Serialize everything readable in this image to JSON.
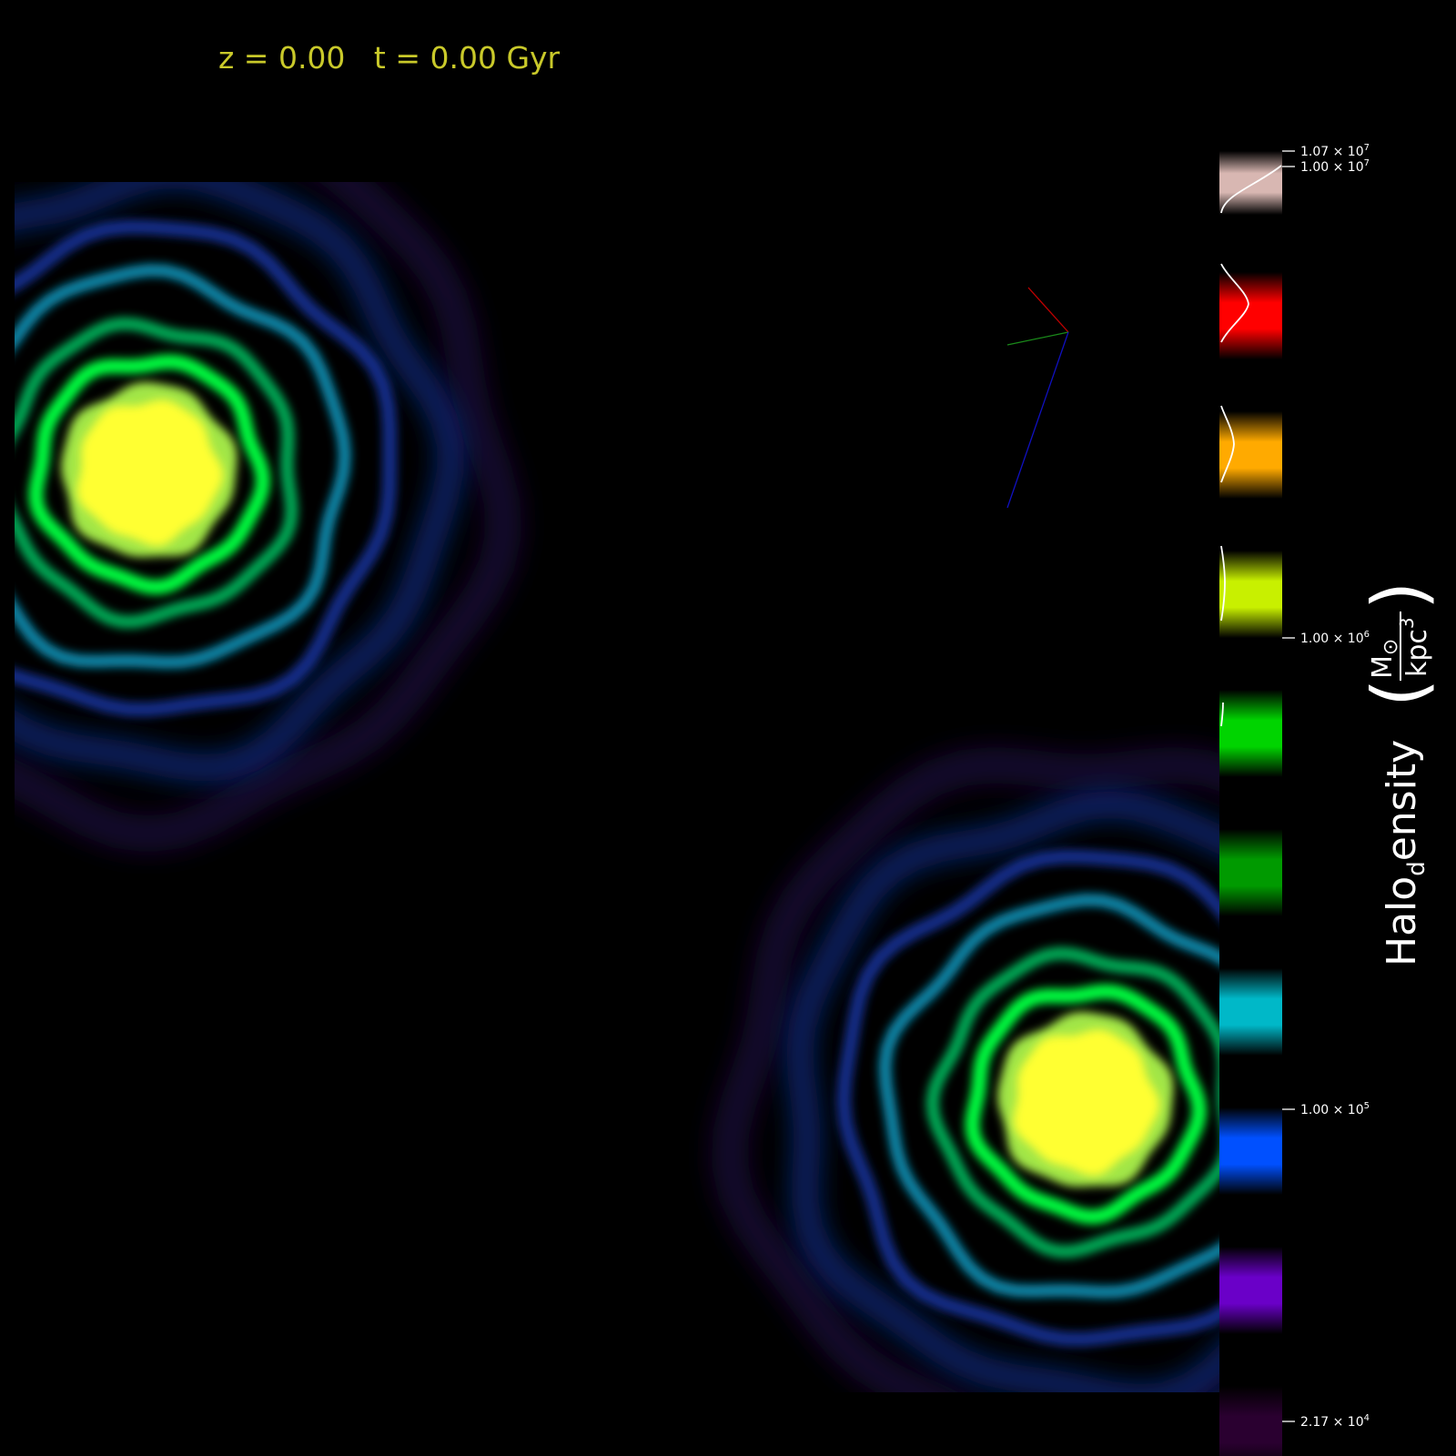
{
  "header": {
    "redshift": "z = 0.00",
    "time": "t = 0.00 Gyr"
  },
  "colorbar": {
    "label_main": "Halo",
    "label_sub": "d",
    "label_rest": "ensity",
    "unit_numerator": "M",
    "unit_sun_symbol": "⊙",
    "unit_denominator": "kpc",
    "unit_exponent": "3",
    "ticks": [
      {
        "mantissa": "1.07",
        "exponent": "7"
      },
      {
        "mantissa": "1.00",
        "exponent": "7"
      },
      {
        "mantissa": "1.00",
        "exponent": "6"
      },
      {
        "mantissa": "1.00",
        "exponent": "5"
      },
      {
        "mantissa": "2.17",
        "exponent": "4"
      }
    ],
    "bands": [
      {
        "color": "#d8b7b2"
      },
      {
        "color": "#ff0000"
      },
      {
        "color": "#ffaa00"
      },
      {
        "color": "#c8f000"
      },
      {
        "color": "#00d400"
      },
      {
        "color": "#009a00"
      },
      {
        "color": "#00b8c8"
      },
      {
        "color": "#0050ff"
      },
      {
        "color": "#6a00c8"
      },
      {
        "color": "#2a0030"
      }
    ]
  },
  "axes_colors": {
    "x": "#c00000",
    "y": "#1a8a1a",
    "z": "#1010c0"
  },
  "halo_colors": [
    "#ffff30",
    "#b4ff50",
    "#00ff40",
    "#00c060",
    "#0aa0c8",
    "#1840c0",
    "#3a1080"
  ]
}
